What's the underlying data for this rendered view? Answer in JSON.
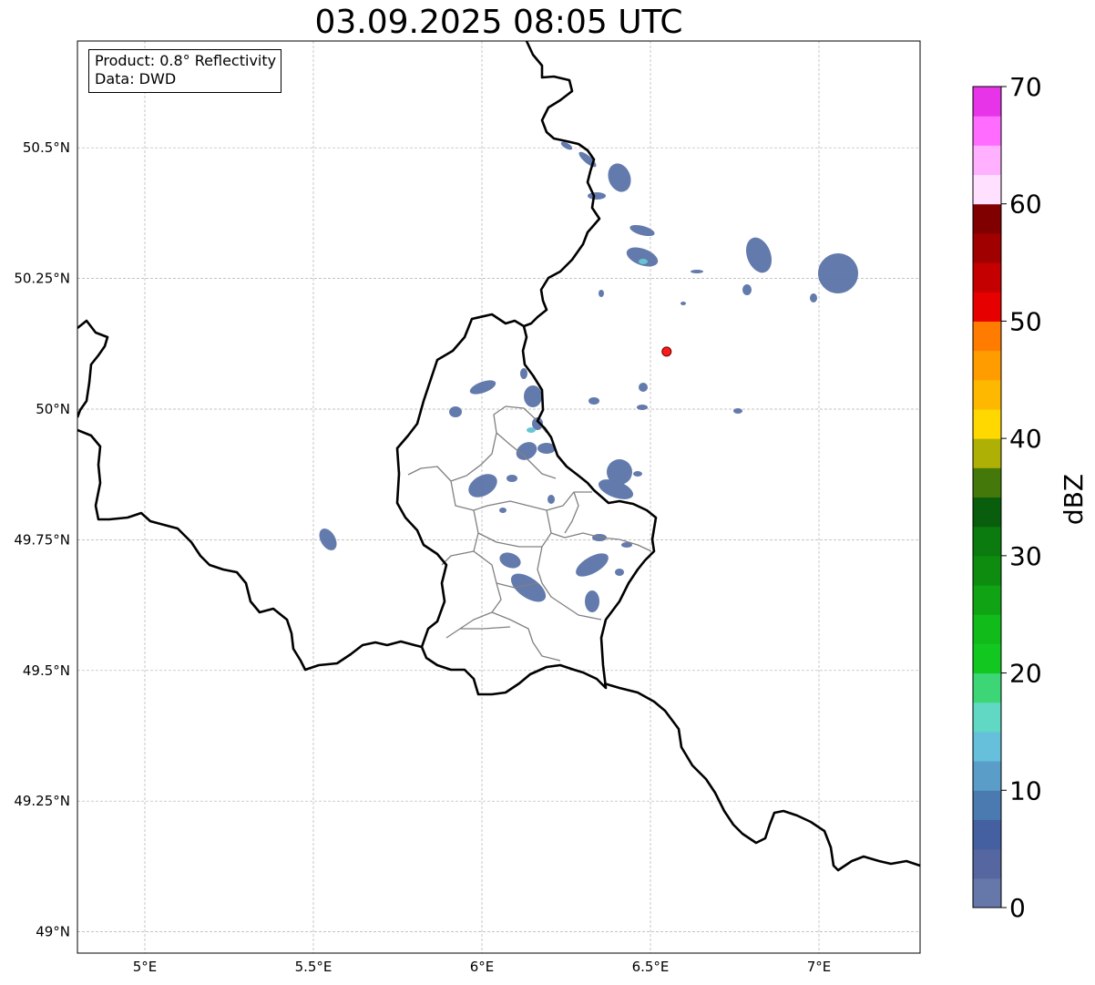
{
  "title": "03.09.2025 08:05 UTC",
  "info": {
    "product": "Product: 0.8° Reflectivity",
    "data": "Data: DWD"
  },
  "axes": {
    "lon_ticks": [
      {
        "value": 5.0,
        "label": "5°E"
      },
      {
        "value": 5.5,
        "label": "5.5°E"
      },
      {
        "value": 6.0,
        "label": "6°E"
      },
      {
        "value": 6.5,
        "label": "6.5°E"
      },
      {
        "value": 7.0,
        "label": "7°E"
      }
    ],
    "lat_ticks": [
      {
        "value": 50.5,
        "label": "50.5°N"
      },
      {
        "value": 50.25,
        "label": "50.25°N"
      },
      {
        "value": 50.0,
        "label": "50°N"
      },
      {
        "value": 49.75,
        "label": "49.75°N"
      },
      {
        "value": 49.5,
        "label": "49.5°N"
      },
      {
        "value": 49.25,
        "label": "49.25°N"
      },
      {
        "value": 49.0,
        "label": "49°N"
      }
    ]
  },
  "radar_site": {
    "lon": 6.548,
    "lat": 50.11,
    "color": "#ff1a1a"
  },
  "colorbar": {
    "label": "dBZ",
    "min": 0,
    "max": 70,
    "tick_labels": [
      "0",
      "10",
      "20",
      "30",
      "40",
      "50",
      "60",
      "70"
    ],
    "colors": [
      "#6677aa",
      "#5566a0",
      "#4460a0",
      "#4a7ab0",
      "#5a9dc8",
      "#66c0dc",
      "#60d8c4",
      "#3cd676",
      "#12c820",
      "#10bb1a",
      "#10a414",
      "#0d8c10",
      "#0b7a0f",
      "#085e0c",
      "#44780a",
      "#aeb006",
      "#ffd800",
      "#ffb800",
      "#ff9c00",
      "#ff7c00",
      "#e60000",
      "#c40000",
      "#a00000",
      "#800000",
      "#ffe0ff",
      "#ffb0ff",
      "#ff6cff",
      "#e834e8"
    ]
  }
}
